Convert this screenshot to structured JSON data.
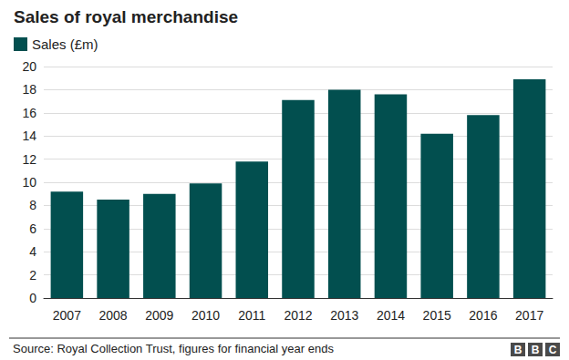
{
  "chart_data": {
    "type": "bar",
    "title": "Sales of royal merchandise",
    "series": [
      {
        "name": "Sales (£m)",
        "color": "#024f4f",
        "values": [
          9.2,
          8.5,
          9.0,
          9.9,
          11.8,
          17.1,
          18.0,
          17.6,
          14.2,
          15.8,
          18.9
        ]
      }
    ],
    "categories": [
      "2007",
      "2008",
      "2009",
      "2010",
      "2011",
      "2012",
      "2013",
      "2014",
      "2015",
      "2016",
      "2017"
    ],
    "ylim": [
      0,
      20
    ],
    "yticks": [
      0,
      2,
      4,
      6,
      8,
      10,
      12,
      14,
      16,
      18,
      20
    ],
    "grid": true,
    "legend": "top-left",
    "source": "Source: Royal Collection Trust, figures for financial year ends",
    "credit": "BBC"
  }
}
